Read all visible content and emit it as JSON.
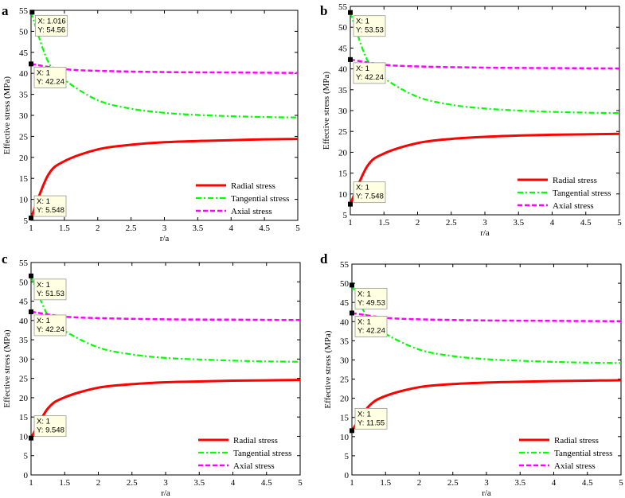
{
  "chart_data": [
    {
      "panel": "a",
      "type": "line",
      "xlabel": "r/a",
      "ylabel": "Effective stress (MPa)",
      "xlim": [
        1,
        5
      ],
      "ylim": [
        5,
        55
      ],
      "xticks": [
        "1",
        "1.5",
        "2",
        "2.5",
        "3",
        "3.5",
        "4",
        "4.5",
        "5"
      ],
      "yticks": [
        "5",
        "10",
        "15",
        "20",
        "25",
        "30",
        "35",
        "40",
        "45",
        "50",
        "55"
      ],
      "legend_position": "bottom-right",
      "series": [
        {
          "name": "Radial stress",
          "color": "#ff0000",
          "style": "solid",
          "x": [
            1,
            1.25,
            1.5,
            2,
            2.5,
            3,
            3.5,
            4,
            4.5,
            5
          ],
          "y": [
            5.548,
            15.6,
            19.1,
            21.9,
            23.0,
            23.6,
            23.9,
            24.1,
            24.3,
            24.4
          ]
        },
        {
          "name": "Tangential stress",
          "color": "#00ff00",
          "style": "dashdot",
          "x": [
            1,
            1.25,
            1.5,
            2,
            2.5,
            3,
            3.5,
            4,
            4.5,
            5
          ],
          "y": [
            54.56,
            43.0,
            38.5,
            33.6,
            31.6,
            30.6,
            30.1,
            29.8,
            29.6,
            29.5
          ]
        },
        {
          "name": "Axial stress",
          "color": "#ff00ff",
          "style": "dashed",
          "x": [
            1,
            1.5,
            2,
            3,
            4,
            5
          ],
          "y": [
            42.24,
            41.0,
            40.6,
            40.3,
            40.2,
            40.1
          ]
        }
      ],
      "datatips": [
        {
          "x": 1.016,
          "y": 54.56,
          "lines": [
            "X: 1.016",
            "Y: 54.56"
          ]
        },
        {
          "x": 1,
          "y": 42.24,
          "lines": [
            "X: 1",
            "Y: 42.24"
          ]
        },
        {
          "x": 1,
          "y": 5.548,
          "lines": [
            "X: 1",
            "Y: 5.548"
          ]
        }
      ]
    },
    {
      "panel": "b",
      "type": "line",
      "xlabel": "r/a",
      "ylabel": "Effective stress (MPa)",
      "xlim": [
        1,
        5
      ],
      "ylim": [
        5,
        55
      ],
      "xticks": [
        "1",
        "1.5",
        "2",
        "2.5",
        "3",
        "3.5",
        "4",
        "4.5",
        "5"
      ],
      "yticks": [
        "5",
        "10",
        "15",
        "20",
        "25",
        "30",
        "35",
        "40",
        "45",
        "50",
        "55"
      ],
      "legend_position": "bottom-right",
      "series": [
        {
          "name": "Radial stress",
          "color": "#ff0000",
          "style": "solid",
          "x": [
            1,
            1.25,
            1.5,
            2,
            2.5,
            3,
            3.5,
            4,
            4.5,
            5
          ],
          "y": [
            7.548,
            16.6,
            19.7,
            22.2,
            23.2,
            23.7,
            24.0,
            24.2,
            24.3,
            24.4
          ]
        },
        {
          "name": "Tangential stress",
          "color": "#00ff00",
          "style": "dashdot",
          "x": [
            1,
            1.25,
            1.5,
            2,
            2.5,
            3,
            3.5,
            4,
            4.5,
            5
          ],
          "y": [
            53.53,
            42.2,
            37.8,
            33.3,
            31.4,
            30.5,
            30.0,
            29.7,
            29.5,
            29.4
          ]
        },
        {
          "name": "Axial stress",
          "color": "#ff00ff",
          "style": "dashed",
          "x": [
            1,
            1.5,
            2,
            3,
            4,
            5
          ],
          "y": [
            42.24,
            41.0,
            40.6,
            40.3,
            40.2,
            40.1
          ]
        }
      ],
      "datatips": [
        {
          "x": 1,
          "y": 53.53,
          "lines": [
            "X: 1",
            "Y: 53.53"
          ]
        },
        {
          "x": 1,
          "y": 42.24,
          "lines": [
            "X: 1",
            "Y: 42.24"
          ]
        },
        {
          "x": 1,
          "y": 7.548,
          "lines": [
            "X: 1",
            "Y: 7.548"
          ]
        }
      ]
    },
    {
      "panel": "c",
      "type": "line",
      "xlabel": "r/a",
      "ylabel": "Effective stress (MPa)",
      "xlim": [
        1,
        5
      ],
      "ylim": [
        0,
        55
      ],
      "xticks": [
        "1",
        "1.5",
        "2",
        "2.5",
        "3",
        "3.5",
        "4",
        "4.5",
        "5"
      ],
      "yticks": [
        "0",
        "5",
        "10",
        "15",
        "20",
        "25",
        "30",
        "35",
        "40",
        "45",
        "50",
        "55"
      ],
      "legend_position": "bottom-right",
      "series": [
        {
          "name": "Radial stress",
          "color": "#ff0000",
          "style": "solid",
          "x": [
            1,
            1.25,
            1.5,
            2,
            2.5,
            3,
            3.5,
            4,
            4.5,
            5
          ],
          "y": [
            9.548,
            17.2,
            20.1,
            22.6,
            23.5,
            24.0,
            24.2,
            24.4,
            24.5,
            24.6
          ]
        },
        {
          "name": "Tangential stress",
          "color": "#00ff00",
          "style": "dashdot",
          "x": [
            1,
            1.25,
            1.5,
            2,
            2.5,
            3,
            3.5,
            4,
            4.5,
            5
          ],
          "y": [
            51.53,
            41.3,
            37.3,
            33.0,
            31.2,
            30.3,
            29.9,
            29.6,
            29.4,
            29.3
          ]
        },
        {
          "name": "Axial stress",
          "color": "#ff00ff",
          "style": "dashed",
          "x": [
            1,
            1.5,
            2,
            3,
            4,
            5
          ],
          "y": [
            42.24,
            41.0,
            40.6,
            40.3,
            40.2,
            40.1
          ]
        }
      ],
      "datatips": [
        {
          "x": 1,
          "y": 51.53,
          "lines": [
            "X: 1",
            "Y: 51.53"
          ]
        },
        {
          "x": 1,
          "y": 42.24,
          "lines": [
            "X: 1",
            "Y: 42.24"
          ]
        },
        {
          "x": 1,
          "y": 9.548,
          "lines": [
            "X: 1",
            "Y: 9.548"
          ]
        }
      ]
    },
    {
      "panel": "d",
      "type": "line",
      "xlabel": "r/a",
      "ylabel": "Effective stress (MPa)",
      "xlim": [
        1,
        5
      ],
      "ylim": [
        0,
        55
      ],
      "xticks": [
        "1",
        "1.5",
        "2",
        "2.5",
        "3",
        "3.5",
        "4",
        "4.5",
        "5"
      ],
      "yticks": [
        "0",
        "5",
        "10",
        "15",
        "20",
        "25",
        "30",
        "35",
        "40",
        "45",
        "50",
        "55"
      ],
      "legend_position": "bottom-right",
      "series": [
        {
          "name": "Radial stress",
          "color": "#ff0000",
          "style": "solid",
          "x": [
            1,
            1.25,
            1.5,
            2,
            2.5,
            3,
            3.5,
            4,
            4.5,
            5
          ],
          "y": [
            11.55,
            17.9,
            20.6,
            22.9,
            23.7,
            24.1,
            24.3,
            24.5,
            24.6,
            24.7
          ]
        },
        {
          "name": "Tangential stress",
          "color": "#00ff00",
          "style": "dashdot",
          "x": [
            1,
            1.25,
            1.5,
            2,
            2.5,
            3,
            3.5,
            4,
            4.5,
            5
          ],
          "y": [
            49.53,
            40.4,
            36.8,
            32.7,
            31.0,
            30.2,
            29.8,
            29.5,
            29.3,
            29.2
          ]
        },
        {
          "name": "Axial stress",
          "color": "#ff00ff",
          "style": "dashed",
          "x": [
            1,
            1.5,
            2,
            3,
            4,
            5
          ],
          "y": [
            42.24,
            41.0,
            40.6,
            40.3,
            40.2,
            40.1
          ]
        }
      ],
      "datatips": [
        {
          "x": 1,
          "y": 49.53,
          "lines": [
            "X: 1",
            "Y: 49.53"
          ]
        },
        {
          "x": 1,
          "y": 42.24,
          "lines": [
            "X: 1",
            "Y: 42.24"
          ]
        },
        {
          "x": 1,
          "y": 11.55,
          "lines": [
            "X: 1",
            "Y: 11.55"
          ]
        }
      ]
    }
  ]
}
